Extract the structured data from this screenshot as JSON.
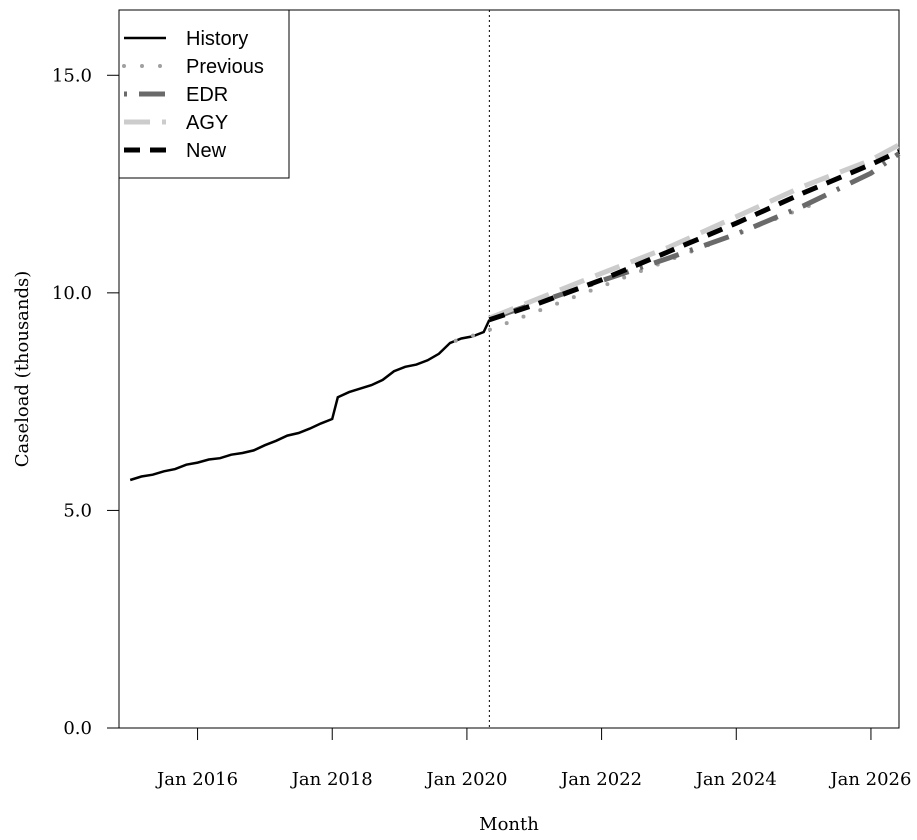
{
  "chart_data": {
    "type": "line",
    "xlabel": "Month",
    "ylabel": "Caseload (thousands)",
    "ylim": [
      0,
      16.5
    ],
    "xlim": [
      "2014-11",
      "2026-06"
    ],
    "x_ticks": [
      {
        "date": "2016-01",
        "label": "Jan 2016"
      },
      {
        "date": "2018-01",
        "label": "Jan 2018"
      },
      {
        "date": "2020-01",
        "label": "Jan 2020"
      },
      {
        "date": "2022-01",
        "label": "Jan 2022"
      },
      {
        "date": "2024-01",
        "label": "Jan 2024"
      },
      {
        "date": "2026-01",
        "label": "Jan 2026"
      }
    ],
    "y_ticks": [
      {
        "value": 0,
        "label": "0.0"
      },
      {
        "value": 5,
        "label": "5.0"
      },
      {
        "value": 10,
        "label": "10.0"
      },
      {
        "value": 15,
        "label": "15.0"
      }
    ],
    "forecast_start": "2020-05",
    "legend_position": "top-left",
    "grid": false,
    "series": [
      {
        "name": "History",
        "style": "solid",
        "color": "#000000",
        "points": [
          [
            "2015-01",
            5.7
          ],
          [
            "2015-03",
            5.78
          ],
          [
            "2015-05",
            5.82
          ],
          [
            "2015-07",
            5.9
          ],
          [
            "2015-09",
            5.95
          ],
          [
            "2015-11",
            6.05
          ],
          [
            "2016-01",
            6.1
          ],
          [
            "2016-03",
            6.17
          ],
          [
            "2016-05",
            6.2
          ],
          [
            "2016-07",
            6.28
          ],
          [
            "2016-09",
            6.32
          ],
          [
            "2016-11",
            6.38
          ],
          [
            "2017-01",
            6.5
          ],
          [
            "2017-03",
            6.6
          ],
          [
            "2017-05",
            6.72
          ],
          [
            "2017-07",
            6.78
          ],
          [
            "2017-09",
            6.88
          ],
          [
            "2017-11",
            7.0
          ],
          [
            "2018-01",
            7.1
          ],
          [
            "2018-02",
            7.6
          ],
          [
            "2018-04",
            7.72
          ],
          [
            "2018-06",
            7.8
          ],
          [
            "2018-08",
            7.88
          ],
          [
            "2018-10",
            8.0
          ],
          [
            "2018-12",
            8.2
          ],
          [
            "2019-02",
            8.3
          ],
          [
            "2019-04",
            8.35
          ],
          [
            "2019-06",
            8.45
          ],
          [
            "2019-08",
            8.6
          ],
          [
            "2019-10",
            8.85
          ],
          [
            "2019-12",
            8.95
          ],
          [
            "2020-02",
            9.0
          ],
          [
            "2020-04",
            9.1
          ],
          [
            "2020-05",
            9.38
          ]
        ]
      },
      {
        "name": "Previous",
        "style": "dotted",
        "color": "#a0a0a0",
        "points": [
          [
            "2019-11",
            8.9
          ],
          [
            "2020-03",
            9.05
          ],
          [
            "2020-08",
            9.3
          ],
          [
            "2021-01",
            9.55
          ],
          [
            "2021-06",
            9.8
          ],
          [
            "2021-11",
            10.05
          ],
          [
            "2022-04",
            10.3
          ],
          [
            "2022-09",
            10.55
          ],
          [
            "2023-02",
            10.8
          ],
          [
            "2023-07",
            11.05
          ],
          [
            "2023-12",
            11.3
          ],
          [
            "2024-05",
            11.55
          ],
          [
            "2024-10",
            11.8
          ],
          [
            "2025-03",
            12.05
          ]
        ]
      },
      {
        "name": "EDR",
        "style": "dotdash",
        "color": "#6a6a6a",
        "points": [
          [
            "2020-05",
            9.4
          ],
          [
            "2021-01",
            9.75
          ],
          [
            "2022-01",
            10.28
          ],
          [
            "2023-01",
            10.8
          ],
          [
            "2024-01",
            11.35
          ],
          [
            "2025-01",
            12.0
          ],
          [
            "2026-01",
            12.75
          ],
          [
            "2026-06",
            13.2
          ]
        ]
      },
      {
        "name": "AGY",
        "style": "longdash",
        "color": "#cccccc",
        "points": [
          [
            "2020-05",
            9.42
          ],
          [
            "2021-01",
            9.83
          ],
          [
            "2022-01",
            10.45
          ],
          [
            "2023-01",
            11.05
          ],
          [
            "2024-01",
            11.75
          ],
          [
            "2025-01",
            12.45
          ],
          [
            "2026-01",
            13.05
          ],
          [
            "2026-06",
            13.4
          ]
        ]
      },
      {
        "name": "New",
        "style": "dashed",
        "color": "#000000",
        "points": [
          [
            "2020-05",
            9.38
          ],
          [
            "2021-01",
            9.72
          ],
          [
            "2022-01",
            10.3
          ],
          [
            "2023-01",
            10.95
          ],
          [
            "2024-01",
            11.6
          ],
          [
            "2025-01",
            12.3
          ],
          [
            "2026-01",
            12.95
          ],
          [
            "2026-06",
            13.25
          ]
        ]
      }
    ]
  }
}
